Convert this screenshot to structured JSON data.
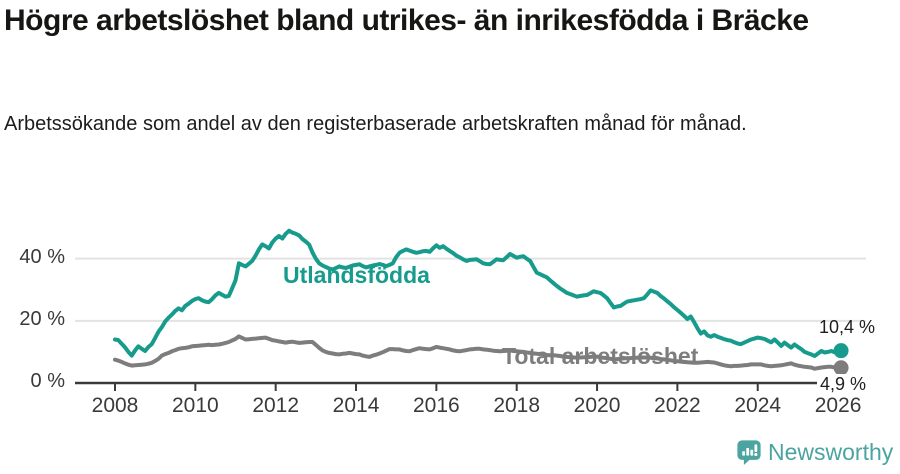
{
  "header": {
    "title": "Högre arbetslöshet bland utrikes- än inrikesfödda i Bräcke",
    "subtitle": "Arbetssökande som andel av den registerbaserade arbetskraften månad för månad."
  },
  "footer": {
    "brand": "Newsworthy",
    "brand_color": "#4BA4A0",
    "logo_icon": "newsworthy-speech-bubble-bar-chart-icon"
  },
  "chart_data": {
    "type": "line",
    "title": "Högre arbetslöshet bland utrikes- än inrikesfödda i Bräcke",
    "subtitle": "Arbetssökande som andel av den registerbaserade arbetskraften månad för månad.",
    "x_start": 2008.0,
    "x_step": 0.08333333,
    "y_unit": "%",
    "ylim": [
      0,
      50
    ],
    "grid": "horizontal",
    "legend": "inline-series-labels",
    "xticks": [
      {
        "x": 2008,
        "label": "2008"
      },
      {
        "x": 2010,
        "label": "2010"
      },
      {
        "x": 2012,
        "label": "2012"
      },
      {
        "x": 2014,
        "label": "2014"
      },
      {
        "x": 2016,
        "label": "2016"
      },
      {
        "x": 2018,
        "label": "2018"
      },
      {
        "x": 2020,
        "label": "2020"
      },
      {
        "x": 2022,
        "label": "2022"
      },
      {
        "x": 2024,
        "label": "2024"
      },
      {
        "x": 2026,
        "label": "2026"
      }
    ],
    "yticks": [
      {
        "v": 0,
        "label": "0 %"
      },
      {
        "v": 20,
        "label": "20 %"
      },
      {
        "v": 40,
        "label": "40 %"
      }
    ],
    "colors": {
      "grid": "#E3E3E3",
      "axis": "#3A3A3A",
      "tick_text": "#3A3A3A",
      "end_label_text": "#1F1F1F"
    },
    "series": [
      {
        "name": "Utlandsfödda",
        "color": "#169B8C",
        "end_label": "10,4 %",
        "end_value": 10.4,
        "values": [
          14,
          13.8,
          12.6,
          11.5,
          10,
          8.8,
          10.5,
          11.8,
          11,
          10.3,
          11.6,
          12.5,
          14.5,
          16.5,
          18,
          19.8,
          21,
          22,
          23.2,
          24,
          23.4,
          24.8,
          25.5,
          26.4,
          27,
          27.3,
          26.6,
          26.2,
          26,
          27,
          28.2,
          29,
          28.4,
          27.8,
          28,
          30.5,
          33,
          38.5,
          38,
          37.5,
          38.4,
          39.3,
          41,
          43,
          44.6,
          44,
          43.3,
          45.2,
          46.5,
          47.3,
          46.5,
          48,
          49,
          48.4,
          48,
          47.5,
          46.3,
          45.5,
          44.5,
          42,
          40,
          38.5,
          37.8,
          37.3,
          36.8,
          36.5,
          37,
          37.5,
          37.2,
          37,
          37.4,
          37.8,
          38,
          38.2,
          37.6,
          37.2,
          37.5,
          37.8,
          38,
          38.3,
          38,
          37.6,
          38,
          38.5,
          40.5,
          41.9,
          42.5,
          43,
          42.6,
          42.2,
          41.9,
          42.1,
          42.4,
          42.5,
          42.2,
          43.3,
          44.3,
          43.5,
          44,
          43.2,
          42.5,
          41.8,
          41,
          40.4,
          39.8,
          39.3,
          39.6,
          39.7,
          39.8,
          39.2,
          38.5,
          38.3,
          38.2,
          39,
          39.8,
          39.6,
          39.5,
          40.5,
          41.5,
          40.9,
          40.3,
          40.6,
          40.8,
          40,
          39.3,
          37.4,
          35.5,
          35,
          34.5,
          34,
          33,
          32.1,
          31.2,
          30.4,
          29.7,
          29,
          28.6,
          28.2,
          27.8,
          28,
          28.2,
          28.3,
          28.9,
          29.5,
          29.2,
          29,
          28.2,
          27.3,
          25.8,
          24.3,
          24.6,
          24.8,
          25.5,
          26.2,
          26.4,
          26.6,
          26.8,
          27,
          27.3,
          28.5,
          29.8,
          29.4,
          29,
          28,
          27.2,
          26.3,
          25.4,
          24.4,
          23.5,
          22.6,
          21.6,
          20.6,
          21.4,
          19.6,
          17.6,
          15.9,
          16.6,
          15.3,
          14.9,
          15.4,
          14.9,
          14.5,
          14.1,
          13.8,
          13.6,
          13.1,
          12.7,
          12.5,
          13,
          13.5,
          14,
          14.3,
          14.6,
          14.4,
          14.2,
          13.6,
          13.1,
          14,
          13,
          11.9,
          13,
          12.2,
          11.4,
          12.4,
          11.6,
          10.9,
          10,
          9.6,
          9.2,
          8.7,
          9.5,
          10.3,
          9.8,
          10,
          10.3,
          9.9,
          10.4
        ]
      },
      {
        "name": "Total arbetslöshet",
        "color": "#7D7D7D",
        "end_label": "4,9 %",
        "end_value": 4.9,
        "values": [
          7.5,
          7.2,
          6.8,
          6.3,
          5.9,
          5.6,
          5.7,
          5.8,
          5.9,
          6,
          6.2,
          6.5,
          7.1,
          7.8,
          8.8,
          9.3,
          9.7,
          10.2,
          10.6,
          11,
          11.2,
          11.3,
          11.5,
          11.8,
          11.9,
          12,
          12.1,
          12.2,
          12.3,
          12.2,
          12.3,
          12.4,
          12.6,
          12.9,
          13.2,
          13.7,
          14.2,
          15,
          14.5,
          14,
          14.1,
          14.2,
          14.3,
          14.4,
          14.5,
          14.6,
          14.2,
          13.8,
          13.6,
          13.4,
          13.2,
          13,
          13.2,
          13.3,
          13.1,
          12.9,
          13,
          13.1,
          13.2,
          13.2,
          12.3,
          11.3,
          10.5,
          10,
          9.7,
          9.5,
          9.3,
          9.2,
          9.4,
          9.5,
          9.7,
          9.5,
          9.3,
          9.2,
          8.8,
          8.6,
          8.4,
          8.8,
          9.1,
          9.5,
          9.9,
          10.4,
          10.9,
          10.9,
          10.8,
          10.8,
          10.5,
          10.3,
          10.2,
          10.6,
          10.9,
          11.2,
          11,
          10.9,
          10.8,
          11.2,
          11.6,
          11.4,
          11.2,
          11,
          10.8,
          10.5,
          10.3,
          10.2,
          10.4,
          10.6,
          10.8,
          10.9,
          11,
          11,
          10.8,
          10.7,
          10.6,
          10.4,
          10.3,
          10.2,
          10.3,
          10.4,
          10.5,
          10.3,
          10.2,
          10.1,
          10,
          9.8,
          9.7,
          9.5,
          9.4,
          9.3,
          9.2,
          9,
          8.9,
          8.9,
          8.8,
          8.7,
          8.5,
          8.4,
          8.3,
          8.2,
          8.2,
          8.2,
          8.3,
          8.3,
          8.4,
          8.5,
          8.5,
          8.3,
          8.1,
          8,
          7.8,
          7.6,
          7.7,
          7.8,
          7.9,
          8,
          8,
          8.1,
          8.1,
          8.2,
          8.2,
          8.2,
          8.1,
          8,
          7.9,
          7.7,
          7.6,
          7.4,
          7.3,
          7.1,
          7,
          6.9,
          6.8,
          6.7,
          6.6,
          6.5,
          6.5,
          6.6,
          6.7,
          6.8,
          6.7,
          6.6,
          6.3,
          6,
          5.7,
          5.5,
          5.4,
          5.5,
          5.5,
          5.6,
          5.7,
          5.8,
          6,
          6,
          6,
          6,
          5.7,
          5.5,
          5.4,
          5.5,
          5.6,
          5.7,
          5.9,
          6.1,
          6.3,
          5.9,
          5.6,
          5.4,
          5.2,
          5.1,
          5,
          4.6,
          4.8,
          5,
          5.1,
          5.2,
          5.2,
          5,
          4.9
        ]
      }
    ]
  }
}
